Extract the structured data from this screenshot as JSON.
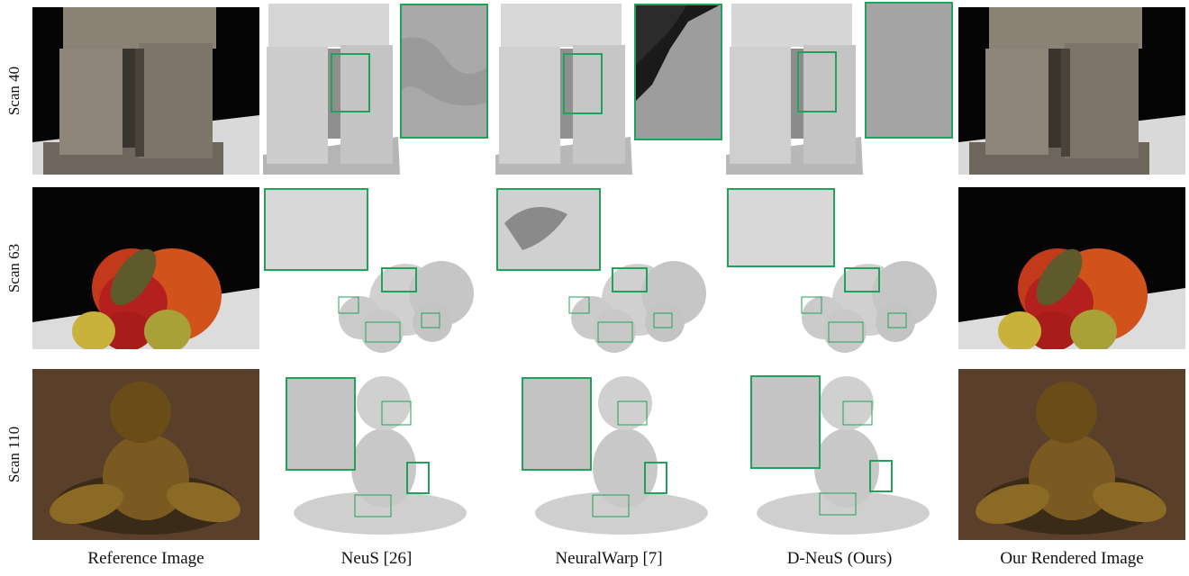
{
  "rows": [
    {
      "label": "Scan 40"
    },
    {
      "label": "Scan 63"
    },
    {
      "label": "Scan 110"
    }
  ],
  "columns": [
    {
      "caption": "Reference Image"
    },
    {
      "caption": "NeuS [26]"
    },
    {
      "caption": "NeuralWarp [7]"
    },
    {
      "caption": "D-NeuS (Ours)"
    },
    {
      "caption": "Our Rendered Image"
    }
  ],
  "colors": {
    "highlight_box": "#1fa35a",
    "photo_background": "#050505",
    "mesh": "#c8c8c8"
  }
}
